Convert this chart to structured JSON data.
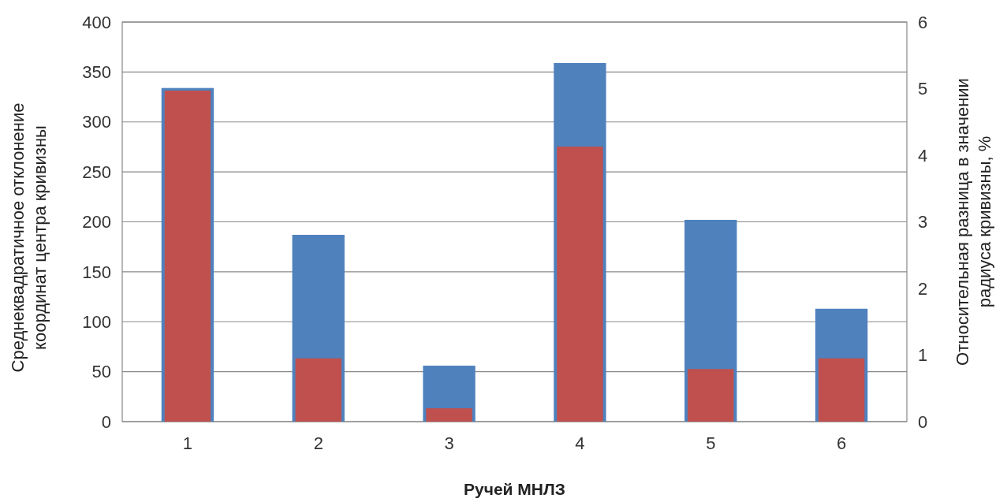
{
  "chart_data": {
    "type": "bar",
    "xlabel": "Ручей МНЛЗ",
    "ylabel": "Среднеквадратичное отклонение координат центра кривизны",
    "y2label": "Относительная разница в значении радиуса кривизны, %",
    "categories": [
      "1",
      "2",
      "3",
      "4",
      "5",
      "6"
    ],
    "series": [
      {
        "color": "#4f81bd",
        "values": [
          334,
          187,
          56,
          359,
          202,
          113
        ]
      },
      {
        "color": "#c0504d",
        "axis": "y2",
        "values": [
          4.97,
          0.95,
          0.2,
          4.13,
          0.79,
          0.95
        ]
      }
    ],
    "ylim": [
      0,
      400
    ],
    "yticks": [
      0,
      50,
      100,
      150,
      200,
      250,
      300,
      350,
      400
    ],
    "y2lim": [
      0,
      6
    ],
    "y2ticks": [
      0,
      1,
      2,
      3,
      4,
      5,
      6
    ],
    "grid": "y"
  }
}
